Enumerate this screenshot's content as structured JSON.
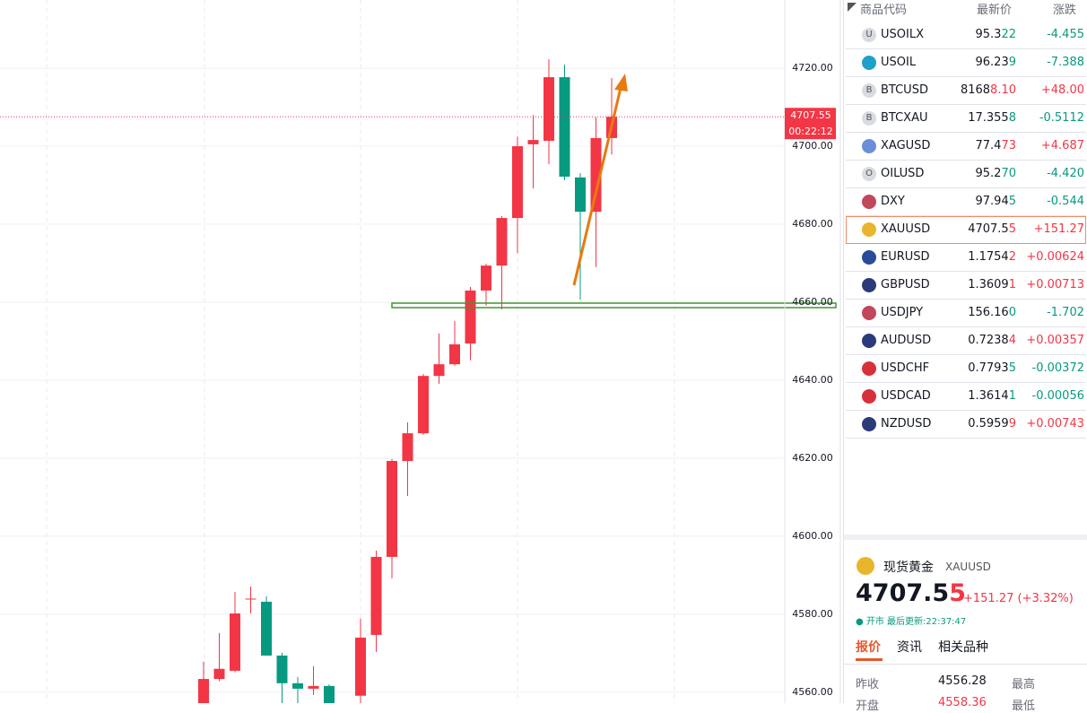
{
  "chart_data": {
    "type": "candlestick",
    "up_color": "#f23645",
    "down_color": "#089981",
    "open": [
      4556.0,
      4563.4,
      4565.5,
      4583.9,
      4583.2,
      4569.4,
      4562.3,
      4560.9,
      4561.6,
      null,
      4559.1,
      4574.7,
      4594.7,
      4619.3,
      4626.4,
      4641.1,
      4644.1,
      4649.4,
      4663.0,
      4669.4,
      4681.6,
      4700.5,
      4701.4,
      4717.7,
      4692.0,
      4683.2,
      4702.1
    ],
    "high": [
      4567.8,
      4575.2,
      4585.7,
      4587.1,
      4584.6,
      4570.1,
      4563.9,
      4566.7,
      4562.0,
      null,
      4578.9,
      4596.3,
      4619.8,
      4629.2,
      4641.6,
      4652.0,
      4655.2,
      4663.9,
      4669.9,
      4682.1,
      4702.5,
      4708.0,
      4722.3,
      4720.9,
      4693.1,
      4707.4,
      4717.5
    ],
    "low": [
      4554.0,
      4562.8,
      4565.1,
      4580.2,
      4569.4,
      4556.0,
      4556.0,
      4559.3,
      4552.0,
      null,
      4555.0,
      4570.3,
      4589.2,
      4610.3,
      4626.0,
      4639.1,
      4643.7,
      4645.1,
      4659.1,
      4658.2,
      4672.6,
      4689.2,
      4695.4,
      4691.3,
      4660.7,
      4669.0,
      4697.9
    ],
    "close": [
      4563.4,
      4566.0,
      4580.2,
      4584.0,
      4569.4,
      4562.3,
      4560.9,
      4561.6,
      4555.0,
      null,
      4574.0,
      4594.7,
      4619.3,
      4626.4,
      4641.1,
      4644.1,
      4649.2,
      4663.0,
      4669.4,
      4681.6,
      4700.0,
      4701.6,
      4717.7,
      4692.2,
      4683.2,
      4702.1,
      4707.55
    ],
    "ylim": [
      4557.2,
      4737.5
    ],
    "yticks": [
      {
        "value": 4560,
        "label": "4560.00"
      },
      {
        "value": 4580,
        "label": "4580.00"
      },
      {
        "value": 4600,
        "label": "4600.00"
      },
      {
        "value": 4620,
        "label": "4620.00"
      },
      {
        "value": 4640,
        "label": "4640.00"
      },
      {
        "value": 4660,
        "label": "4660.00"
      },
      {
        "value": 4680,
        "label": "4680.00"
      },
      {
        "value": 4700,
        "label": "4700.00"
      },
      {
        "value": 4720,
        "label": "4720.00"
      }
    ],
    "grid": true,
    "last_price": 4707.55,
    "countdown": "00:22:12"
  },
  "watchlist": {
    "columns": [
      "商品代码",
      "最新价",
      "涨跌"
    ],
    "selected": "XAUUSD",
    "rows": [
      {
        "icon": "U",
        "icon_color": "#d8dbe2",
        "symbol": "USOILX",
        "price_main": "95.3",
        "price_tail": "22",
        "change": "-4.455"
      },
      {
        "icon_color": "#1ea0c8",
        "symbol": "USOIL",
        "price_main": "96.23",
        "price_tail": "9",
        "change": "-7.388"
      },
      {
        "icon": "B",
        "icon_color": "#d8dbe2",
        "symbol": "BTCUSD",
        "price_main": "8168",
        "price_tail": "8.10",
        "change": "+48.00"
      },
      {
        "icon": "B",
        "icon_color": "#d8dbe2",
        "symbol": "BTCXAU",
        "price_main": "17.355",
        "price_tail": "8",
        "change": "-0.5112"
      },
      {
        "icon_color": "#6a8fd8",
        "symbol": "XAGUSD",
        "price_main": "77.4",
        "price_tail": "73",
        "change": "+4.687"
      },
      {
        "icon": "O",
        "icon_color": "#d8dbe2",
        "symbol": "OILUSD",
        "price_main": "95.2",
        "price_tail": "70",
        "change": "-4.420"
      },
      {
        "icon_color": "#c0485a",
        "symbol": "DXY",
        "price_main": "97.94",
        "price_tail": "5",
        "change": "-0.544"
      },
      {
        "icon_color": "#e8b62c",
        "symbol": "XAUUSD",
        "price_main": "4707.5",
        "price_tail": "5",
        "change": "+151.27"
      },
      {
        "icon_color": "#2a4a9a",
        "symbol": "EURUSD",
        "price_main": "1.1754",
        "price_tail": "2",
        "change": "+0.00624"
      },
      {
        "icon_color": "#2a3a7a",
        "symbol": "GBPUSD",
        "price_main": "1.3609",
        "price_tail": "1",
        "change": "+0.00713"
      },
      {
        "icon_color": "#c0485a",
        "symbol": "USDJPY",
        "price_main": "156.16",
        "price_tail": "0",
        "change": "-1.702"
      },
      {
        "icon_color": "#2a3a7a",
        "symbol": "AUDUSD",
        "price_main": "0.7238",
        "price_tail": "4",
        "change": "+0.00357"
      },
      {
        "icon_color": "#d8303a",
        "symbol": "USDCHF",
        "price_main": "0.7793",
        "price_tail": "5",
        "change": "-0.00372"
      },
      {
        "icon_color": "#d8303a",
        "symbol": "USDCAD",
        "price_main": "1.3614",
        "price_tail": "1",
        "change": "-0.00056"
      },
      {
        "icon_color": "#2a3a7a",
        "symbol": "NZDUSD",
        "price_main": "0.5959",
        "price_tail": "9",
        "change": "+0.00743"
      }
    ]
  },
  "detail": {
    "name": "现货黄金",
    "symbol": "XAUUSD",
    "price_main": "4707.5",
    "price_tail": "5",
    "change": "+151.27 (+3.32%)",
    "status": "开市",
    "updated": "最后更新:22:37:47",
    "tabs": [
      "报价",
      "资讯",
      "相关品种"
    ],
    "stats": [
      [
        "昨收",
        "4556.28",
        "最高"
      ],
      [
        "开盘",
        "4558.36",
        "最低"
      ]
    ]
  }
}
